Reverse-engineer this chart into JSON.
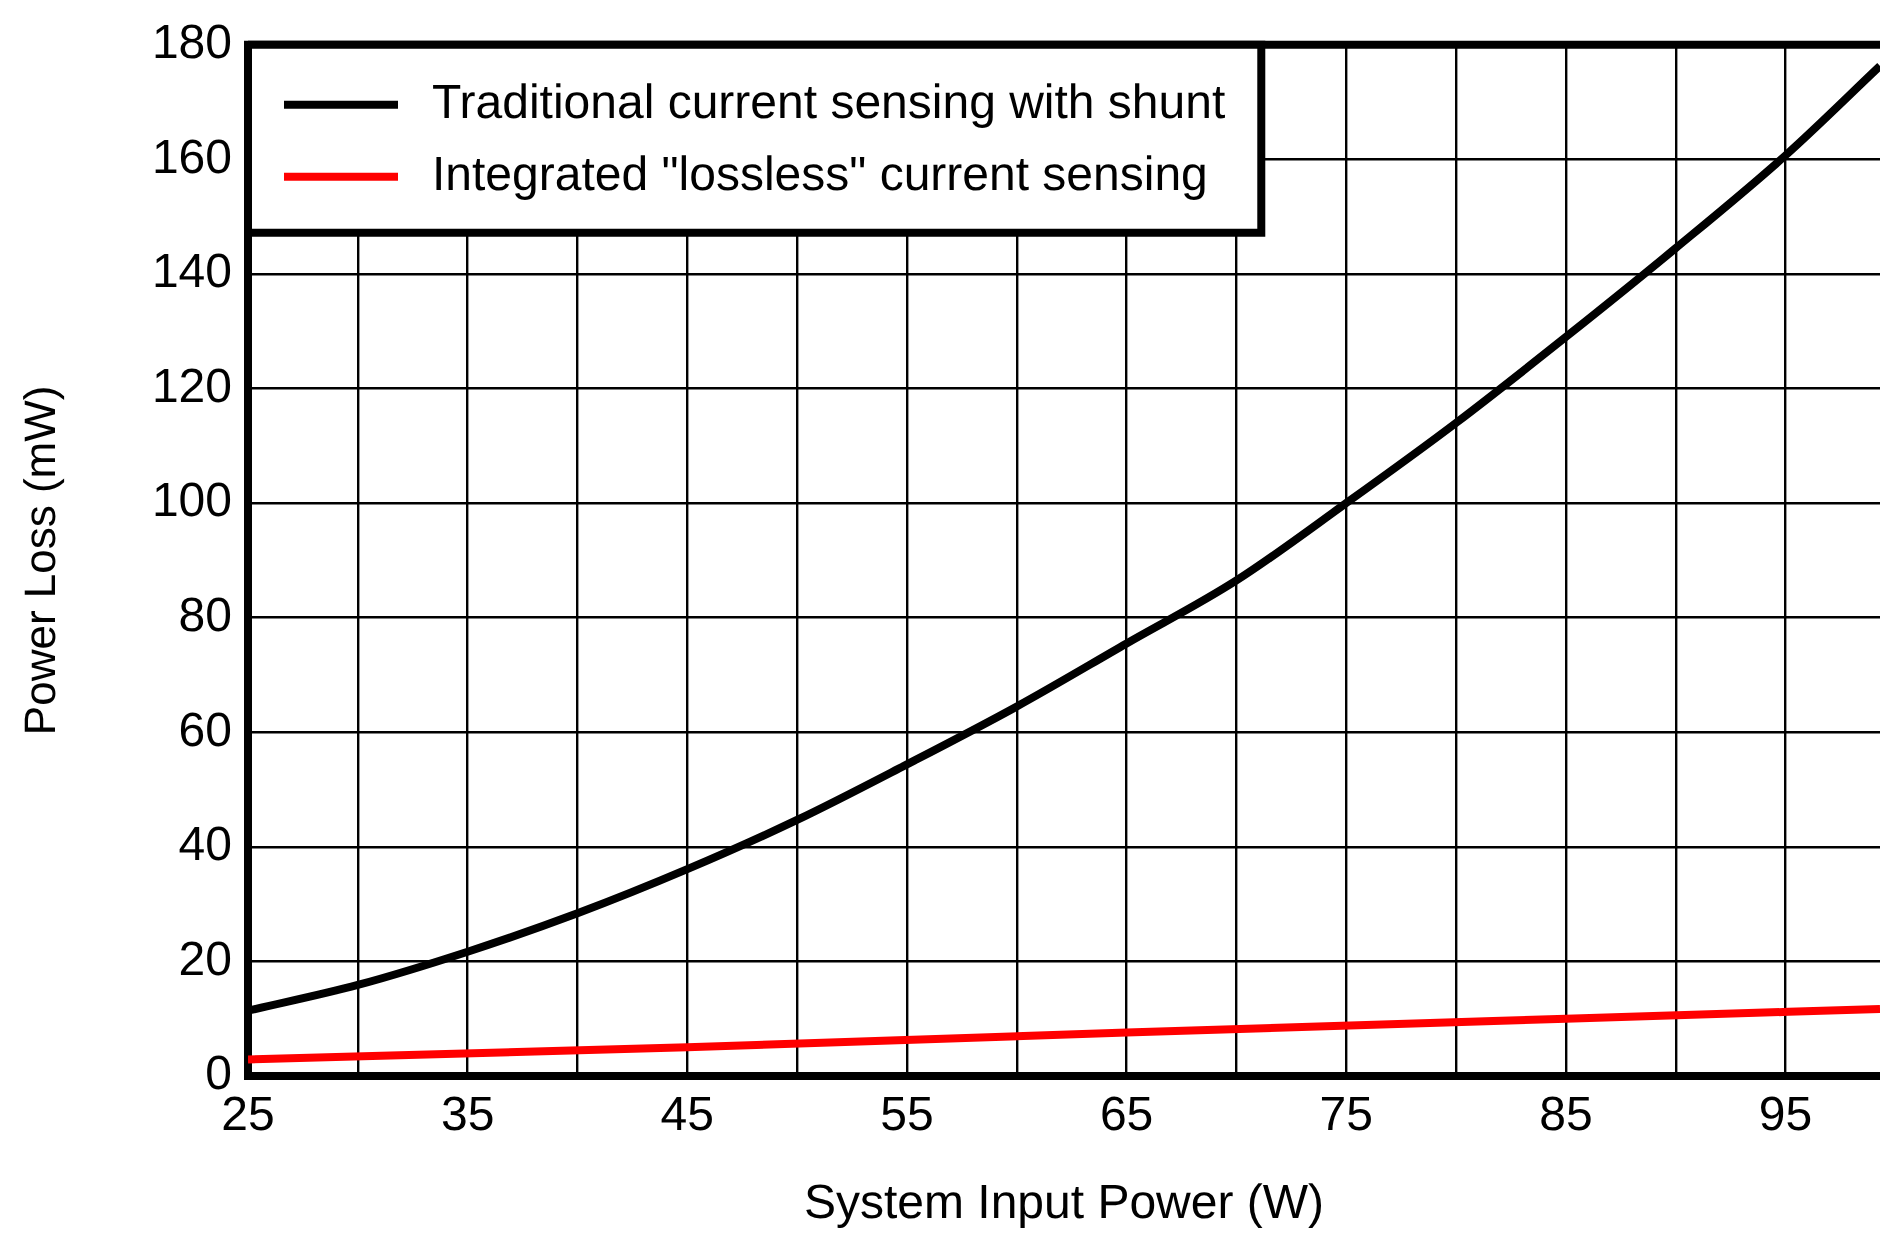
{
  "chart_data": {
    "type": "line",
    "xlabel": "System Input Power (W)",
    "ylabel": "Power Loss (mW)",
    "xlim": [
      25,
      99.3
    ],
    "xticks": [
      25,
      {
        "value": 30,
        "label": null
      },
      35,
      {
        "value": 40,
        "label": null
      },
      45,
      {
        "value": 50,
        "label": null
      },
      55,
      {
        "value": 60,
        "label": null
      },
      65,
      {
        "value": 70,
        "label": null
      },
      75,
      {
        "value": 80,
        "label": null
      },
      85,
      {
        "value": 90,
        "label": null
      },
      95
    ],
    "ylim": [
      0,
      180
    ],
    "yticks": [
      0,
      20,
      40,
      60,
      80,
      100,
      120,
      140,
      160,
      180
    ],
    "grid": true,
    "legend": "top left",
    "marker": "none",
    "line_style": "solid",
    "series": [
      {
        "name": "Traditional current sensing with shunt",
        "color": "#000000",
        "x": [
          25,
          30,
          35,
          40,
          45,
          50,
          55,
          60,
          65,
          70,
          75,
          80,
          85,
          90,
          95,
          99.3
        ],
        "values": [
          11.4,
          15.9,
          21.7,
          28.4,
          36.1,
          44.7,
          54.4,
          64.5,
          75.5,
          86.5,
          100,
          114,
          129,
          144.5,
          160.7,
          176.3
        ]
      },
      {
        "name": "Integrated \"lossless\" current sensing",
        "color": "#ff0000",
        "x": [
          25,
          45,
          65,
          85,
          99.3
        ],
        "values": [
          2.9,
          5.0,
          7.6,
          10.0,
          11.7
        ]
      }
    ]
  }
}
